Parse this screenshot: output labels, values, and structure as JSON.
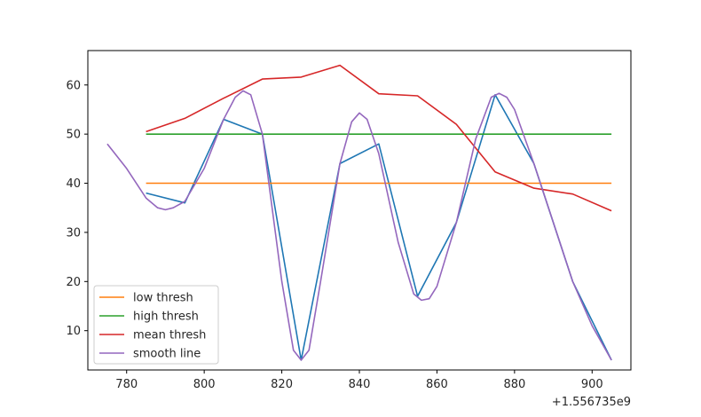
{
  "chart_data": {
    "type": "line",
    "title": "",
    "xlabel": "",
    "ylabel": "",
    "x_offset_label": "+1.556735e9",
    "xlim": [
      770,
      910
    ],
    "ylim": [
      2,
      67
    ],
    "xticks": [
      780,
      800,
      820,
      840,
      860,
      880,
      900
    ],
    "yticks": [
      10,
      20,
      30,
      40,
      50,
      60
    ],
    "legend_position": "lower-left",
    "series": [
      {
        "color": "#1f77b4",
        "in_legend": false,
        "x": [
          785,
          795,
          805,
          815,
          825,
          835,
          845,
          855,
          865,
          875,
          885,
          895,
          905
        ],
        "y": [
          38,
          36,
          53,
          50,
          4,
          44,
          48,
          17,
          32,
          58,
          44,
          20,
          4
        ]
      },
      {
        "name": "low thresh",
        "color": "#ff7f0e",
        "x": [
          785,
          905
        ],
        "y": [
          40,
          40
        ]
      },
      {
        "name": "high thresh",
        "color": "#2ca02c",
        "x": [
          785,
          905
        ],
        "y": [
          50,
          50
        ]
      },
      {
        "name": "mean thresh",
        "color": "#d62728",
        "x": [
          785,
          795,
          805,
          815,
          825,
          835,
          845,
          855,
          865,
          875,
          885,
          895,
          905
        ],
        "y": [
          50.5,
          53.2,
          57.3,
          61.2,
          61.6,
          64,
          58.2,
          57.8,
          52,
          42.3,
          39,
          37.8,
          34.4
        ]
      },
      {
        "name": "smooth line",
        "color": "#9467bd",
        "x": [
          775,
          780,
          785,
          788,
          790,
          792,
          795,
          800,
          805,
          808,
          810,
          812,
          815,
          820,
          823,
          825,
          827,
          830,
          835,
          838,
          840,
          842,
          845,
          850,
          854,
          856,
          858,
          860,
          865,
          870,
          874,
          876,
          878,
          880,
          885,
          890,
          895,
          900,
          905
        ],
        "y": [
          48,
          43,
          37,
          35,
          34.6,
          35,
          36.3,
          43,
          53,
          57.5,
          58.8,
          58,
          50,
          20,
          6,
          4,
          6,
          20,
          44,
          52.5,
          54.3,
          53,
          46,
          28,
          17.5,
          16.2,
          16.5,
          19,
          32,
          49,
          57.5,
          58.3,
          57.5,
          55,
          44,
          32,
          20,
          11,
          4
        ]
      }
    ]
  }
}
